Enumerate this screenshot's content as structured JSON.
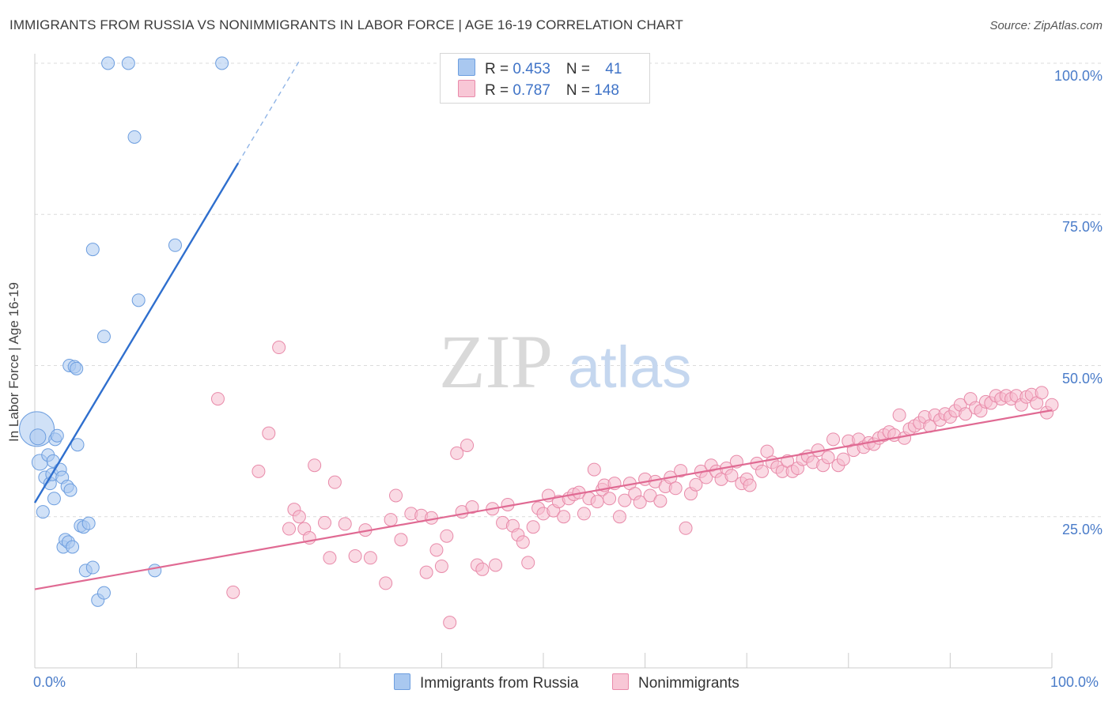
{
  "title": "IMMIGRANTS FROM RUSSIA VS NONIMMIGRANTS IN LABOR FORCE | AGE 16-19 CORRELATION CHART",
  "source": "Source: ZipAtlas.com",
  "watermark": {
    "zip": "ZIP",
    "atlas": "atlas"
  },
  "legend": {
    "rows": [
      {
        "r_label": "R = ",
        "r_value": "0.453",
        "n_label": "N = ",
        "n_value": "41"
      },
      {
        "r_label": "R = ",
        "r_value": "0.787",
        "n_label": "N = ",
        "n_value": "148"
      }
    ]
  },
  "bottom_legend": [
    "Immigrants from Russia",
    "Nonimmigrants"
  ],
  "chart_data": {
    "type": "scatter",
    "title": "IMMIGRANTS FROM RUSSIA VS NONIMMIGRANTS IN LABOR FORCE | AGE 16-19 CORRELATION CHART",
    "xlabel": "",
    "ylabel": "In Labor Force | Age 16-19",
    "xlim": [
      0,
      100
    ],
    "ylim": [
      0,
      100
    ],
    "x_tick_labels": [
      "0.0%",
      "100.0%"
    ],
    "y_tick_labels": [
      {
        "value": 100,
        "label": "100.0%"
      },
      {
        "value": 75,
        "label": "75.0%"
      },
      {
        "value": 50,
        "label": "50.0%"
      },
      {
        "value": 25,
        "label": "25.0%"
      }
    ],
    "grid": "horizontal dashed",
    "legend_position": "top-center",
    "colors": {
      "russia": "#5b93dd",
      "russia_fill": "#a9c8f0",
      "non": "#e77ea0",
      "non_fill": "#f5bccd",
      "tick_label": "#4a7cc9"
    },
    "series": [
      {
        "name": "Immigrants from Russia",
        "R": 0.453,
        "N": 41,
        "trend": {
          "x0": 0,
          "y0": 27.3,
          "x1": 20,
          "y1": 83.5,
          "dash_to_x": 26
        },
        "points": [
          [
            0.2,
            39.5,
            22
          ],
          [
            0.3,
            38.2,
            10
          ],
          [
            0.5,
            34.0,
            10
          ],
          [
            0.8,
            25.8,
            8
          ],
          [
            1.0,
            31.5,
            8
          ],
          [
            1.3,
            35.2,
            8
          ],
          [
            1.5,
            30.5,
            8
          ],
          [
            1.7,
            32.0,
            8
          ],
          [
            1.8,
            34.2,
            8
          ],
          [
            1.9,
            28.0,
            8
          ],
          [
            2.0,
            37.8,
            8
          ],
          [
            2.2,
            38.4,
            8
          ],
          [
            2.5,
            32.8,
            8
          ],
          [
            2.7,
            31.5,
            8
          ],
          [
            2.8,
            20.0,
            8
          ],
          [
            3.0,
            21.2,
            8
          ],
          [
            3.2,
            30.0,
            8
          ],
          [
            3.3,
            20.8,
            8
          ],
          [
            3.5,
            29.4,
            8
          ],
          [
            3.7,
            20.0,
            8
          ],
          [
            3.4,
            50.0,
            8
          ],
          [
            3.9,
            49.8,
            8
          ],
          [
            4.1,
            49.5,
            8
          ],
          [
            4.2,
            36.9,
            8
          ],
          [
            4.5,
            23.5,
            8
          ],
          [
            4.8,
            23.3,
            8
          ],
          [
            5.0,
            16.1,
            8
          ],
          [
            5.3,
            23.9,
            8
          ],
          [
            5.7,
            16.6,
            8
          ],
          [
            6.2,
            11.2,
            8
          ],
          [
            6.8,
            12.4,
            8
          ],
          [
            5.7,
            69.2,
            8
          ],
          [
            6.8,
            54.8,
            8
          ],
          [
            7.2,
            100.0,
            8
          ],
          [
            9.2,
            100.0,
            8
          ],
          [
            9.8,
            87.8,
            8
          ],
          [
            10.2,
            60.8,
            8
          ],
          [
            11.8,
            16.1,
            8
          ],
          [
            13.8,
            69.9,
            8
          ],
          [
            18.4,
            100.0,
            8
          ]
        ]
      },
      {
        "name": "Nonimmigrants",
        "R": 0.787,
        "N": 148,
        "trend": {
          "x0": 0,
          "y0": 13.0,
          "x1": 100,
          "y1": 42.6
        },
        "points": [
          [
            19.5,
            12.5
          ],
          [
            22.0,
            32.5
          ],
          [
            23.0,
            38.8
          ],
          [
            24.0,
            53.0
          ],
          [
            25.0,
            23.0
          ],
          [
            25.5,
            26.2
          ],
          [
            26.0,
            25.0
          ],
          [
            26.5,
            23.0
          ],
          [
            27.0,
            21.5
          ],
          [
            27.5,
            33.5
          ],
          [
            28.5,
            24.0
          ],
          [
            29.0,
            18.2
          ],
          [
            29.5,
            30.7
          ],
          [
            30.5,
            23.8
          ],
          [
            31.5,
            18.5
          ],
          [
            32.5,
            22.8
          ],
          [
            33.0,
            18.2
          ],
          [
            34.5,
            14.0
          ],
          [
            35.0,
            24.5
          ],
          [
            35.5,
            28.5
          ],
          [
            36.0,
            21.2
          ],
          [
            37.0,
            25.5
          ],
          [
            38.0,
            25.2
          ],
          [
            38.5,
            15.8
          ],
          [
            39.0,
            24.8
          ],
          [
            39.5,
            19.5
          ],
          [
            40.0,
            16.8
          ],
          [
            40.5,
            21.8
          ],
          [
            40.8,
            7.5
          ],
          [
            41.5,
            35.5
          ],
          [
            42.0,
            25.8
          ],
          [
            42.5,
            36.8
          ],
          [
            43.0,
            26.6
          ],
          [
            43.5,
            17.0
          ],
          [
            44.0,
            16.3
          ],
          [
            45.0,
            26.3
          ],
          [
            45.3,
            17.0
          ],
          [
            46.0,
            24.0
          ],
          [
            46.5,
            27.0
          ],
          [
            47.0,
            23.5
          ],
          [
            47.5,
            22.0
          ],
          [
            48.0,
            20.8
          ],
          [
            48.5,
            17.4
          ],
          [
            49.0,
            23.3
          ],
          [
            49.5,
            26.4
          ],
          [
            50.0,
            25.5
          ],
          [
            50.5,
            28.5
          ],
          [
            51.0,
            26.0
          ],
          [
            51.5,
            27.5
          ],
          [
            52.0,
            25.0
          ],
          [
            52.5,
            28.0
          ],
          [
            53.0,
            28.7
          ],
          [
            53.5,
            29.0
          ],
          [
            54.0,
            25.5
          ],
          [
            54.5,
            28.0
          ],
          [
            55.0,
            32.8
          ],
          [
            55.3,
            27.5
          ],
          [
            55.8,
            29.5
          ],
          [
            56.0,
            30.2
          ],
          [
            56.5,
            28.0
          ],
          [
            57.0,
            30.5
          ],
          [
            57.5,
            25.0
          ],
          [
            58.0,
            27.7
          ],
          [
            58.5,
            30.5
          ],
          [
            59.0,
            28.8
          ],
          [
            59.5,
            27.4
          ],
          [
            60.0,
            31.2
          ],
          [
            60.5,
            28.5
          ],
          [
            61.0,
            30.8
          ],
          [
            61.5,
            27.6
          ],
          [
            62.0,
            30.0
          ],
          [
            62.5,
            31.5
          ],
          [
            63.0,
            29.7
          ],
          [
            63.5,
            32.6
          ],
          [
            64.0,
            23.1
          ],
          [
            64.5,
            28.8
          ],
          [
            65.0,
            30.3
          ],
          [
            65.5,
            32.5
          ],
          [
            66.0,
            31.5
          ],
          [
            66.5,
            33.5
          ],
          [
            67.0,
            32.5
          ],
          [
            67.5,
            31.2
          ],
          [
            68.0,
            33.0
          ],
          [
            68.5,
            31.8
          ],
          [
            69.0,
            34.1
          ],
          [
            69.5,
            30.5
          ],
          [
            70.0,
            31.2
          ],
          [
            70.3,
            30.2
          ],
          [
            71.0,
            33.8
          ],
          [
            71.5,
            32.5
          ],
          [
            72.0,
            35.8
          ],
          [
            72.5,
            34.0
          ],
          [
            73.0,
            33.2
          ],
          [
            73.5,
            32.5
          ],
          [
            74.0,
            34.2
          ],
          [
            74.5,
            32.5
          ],
          [
            75.0,
            33.0
          ],
          [
            75.5,
            34.5
          ],
          [
            76.0,
            35.0
          ],
          [
            76.5,
            34.0
          ],
          [
            77.0,
            36.0
          ],
          [
            77.5,
            33.5
          ],
          [
            78.0,
            34.8
          ],
          [
            78.5,
            37.8
          ],
          [
            79.0,
            33.5
          ],
          [
            79.5,
            34.5
          ],
          [
            80.0,
            37.5
          ],
          [
            80.5,
            36.0
          ],
          [
            81.0,
            37.8
          ],
          [
            81.5,
            36.5
          ],
          [
            82.0,
            37.2
          ],
          [
            82.5,
            37.0
          ],
          [
            83.0,
            38.0
          ],
          [
            83.5,
            38.5
          ],
          [
            84.0,
            39.0
          ],
          [
            84.5,
            38.5
          ],
          [
            85.0,
            41.8
          ],
          [
            85.5,
            38.0
          ],
          [
            86.0,
            39.5
          ],
          [
            86.5,
            40.0
          ],
          [
            87.0,
            40.5
          ],
          [
            87.5,
            41.5
          ],
          [
            88.0,
            40.0
          ],
          [
            88.5,
            41.8
          ],
          [
            89.0,
            41.0
          ],
          [
            89.5,
            42.0
          ],
          [
            90.0,
            41.5
          ],
          [
            90.5,
            42.5
          ],
          [
            91.0,
            43.5
          ],
          [
            91.5,
            42.0
          ],
          [
            92.0,
            44.5
          ],
          [
            92.5,
            43.0
          ],
          [
            93.0,
            42.5
          ],
          [
            93.5,
            44.0
          ],
          [
            94.0,
            43.8
          ],
          [
            94.5,
            45.0
          ],
          [
            95.0,
            44.5
          ],
          [
            95.5,
            45.0
          ],
          [
            96.0,
            44.5
          ],
          [
            96.5,
            45.0
          ],
          [
            97.0,
            43.5
          ],
          [
            97.5,
            44.8
          ],
          [
            98.0,
            45.2
          ],
          [
            98.5,
            43.8
          ],
          [
            99.0,
            45.5
          ],
          [
            99.5,
            42.2
          ],
          [
            100.0,
            43.5
          ],
          [
            18.0,
            44.5
          ]
        ]
      }
    ]
  }
}
